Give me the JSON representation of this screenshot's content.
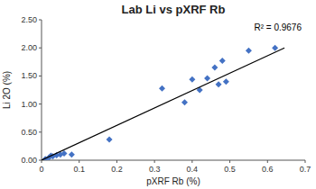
{
  "chart_data": {
    "type": "scatter",
    "title": "Lab Li vs pXRF Rb",
    "x_label": "pXRF Rb (%)",
    "y_label": "Li 2O (%)",
    "annotation": "R² = 0.9676",
    "series": [
      {
        "type": "scatter",
        "color": "#4472C4",
        "marker": "diamond",
        "x": [
          0.01,
          0.02,
          0.025,
          0.03,
          0.04,
          0.05,
          0.06,
          0.08,
          0.18,
          0.32,
          0.38,
          0.4,
          0.42,
          0.44,
          0.46,
          0.47,
          0.48,
          0.49,
          0.55,
          0.62
        ],
        "values": [
          0.02,
          0.05,
          0.08,
          0.07,
          0.09,
          0.1,
          0.12,
          0.1,
          0.37,
          1.28,
          1.03,
          1.44,
          1.25,
          1.46,
          1.65,
          1.35,
          1.77,
          1.4,
          1.95,
          2.0
        ]
      },
      {
        "type": "line",
        "color": "black",
        "line_style": "solid",
        "x": [
          0.0,
          0.645
        ],
        "values": [
          0.0,
          2.0
        ]
      }
    ],
    "xlim": [
      0.0,
      0.7
    ],
    "ylim": [
      0.0,
      2.5
    ],
    "xticks": [
      0,
      0.1,
      0.2,
      0.3,
      0.4,
      0.5,
      0.6,
      0.7
    ],
    "yticks": [
      {
        "value": 0,
        "label": "0.00"
      },
      {
        "value": 0.5,
        "label": "0.50"
      },
      {
        "value": 1,
        "label": "1.00"
      },
      {
        "value": 1.5,
        "label": "1.50"
      },
      {
        "value": 2,
        "label": "2.00"
      },
      {
        "value": 2.5,
        "label": "2.50"
      }
    ],
    "grid": false
  }
}
